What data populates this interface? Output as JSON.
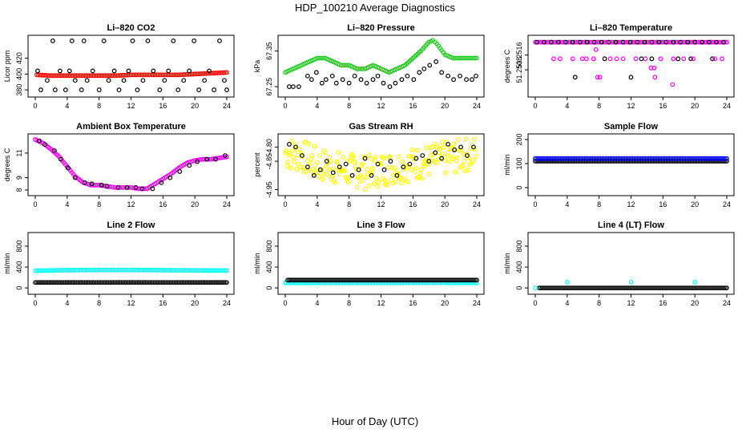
{
  "figure": {
    "title": "HDP_100210  Average Diagnostics",
    "xlabel": "Hour of Day (UTC)"
  },
  "colors": {
    "black": "#000000",
    "red": "#ff0000",
    "green": "#22cc22",
    "magenta": "#ff00ff",
    "yellow": "#ffff00",
    "blue": "#0000ff",
    "cyan": "#00ffff"
  },
  "chart_data": [
    {
      "type": "scatter",
      "title": "Li–820 CO2",
      "ylabel": "Licor ppm",
      "xlim": [
        0,
        24
      ],
      "ylim": [
        375,
        445
      ],
      "xticks": [
        "0",
        "4",
        "8",
        "12",
        "16",
        "20",
        "24"
      ],
      "yticks": [
        {
          "v": 380,
          "label": "380"
        },
        {
          "v": 400,
          "label": "400"
        },
        {
          "v": 420,
          "label": "420"
        }
      ],
      "series": [
        {
          "name": "open",
          "color": "red",
          "kind": "line",
          "x": [
            0.2,
            2,
            4,
            6,
            8,
            10,
            12,
            14,
            16,
            18,
            20,
            22,
            24
          ],
          "y": [
            399,
            398,
            398,
            398,
            398,
            398,
            399,
            399,
            399,
            399,
            400,
            401,
            402
          ]
        },
        {
          "name": "closed",
          "color": "black",
          "kind": "scatter",
          "x": [
            0.3,
            0.7,
            1.5,
            2.2,
            2.5,
            3.1,
            3.8,
            4.3,
            4.6,
            5.0,
            5.8,
            6.1,
            6.5,
            7.2,
            8.0,
            8.6,
            9.2,
            9.9,
            10.5,
            11.1,
            11.7,
            12.2,
            12.8,
            13.5,
            14.1,
            14.8,
            15.6,
            16.2,
            16.7,
            17.3,
            17.9,
            18.6,
            19.3,
            19.9,
            20.5,
            21.2,
            21.8,
            22.4,
            23.1,
            23.7,
            24.0
          ],
          "y": [
            404,
            380,
            392,
            442,
            380,
            404,
            380,
            404,
            442,
            392,
            380,
            442,
            392,
            404,
            380,
            442,
            392,
            404,
            380,
            392,
            404,
            442,
            380,
            392,
            442,
            404,
            380,
            392,
            404,
            442,
            380,
            392,
            404,
            442,
            380,
            392,
            404,
            380,
            442,
            392,
            380
          ]
        }
      ]
    },
    {
      "type": "scatter",
      "title": "Li–820 Pressure",
      "ylabel": "kPa",
      "xlim": [
        0,
        24
      ],
      "ylim": [
        67.23,
        67.385
      ],
      "xticks": [
        "0",
        "4",
        "8",
        "12",
        "16",
        "20",
        "24"
      ],
      "yticks": [
        {
          "v": 67.25,
          "label": "67.25"
        },
        {
          "v": 67.35,
          "label": "67.35"
        }
      ],
      "series": [
        {
          "name": "open",
          "color": "green",
          "kind": "line",
          "x": [
            0,
            1,
            2,
            3,
            4,
            5,
            6,
            7,
            8,
            9,
            10,
            11,
            12,
            13,
            14,
            15,
            16,
            17,
            18,
            18.5,
            19,
            20,
            21,
            22,
            23,
            24
          ],
          "y": [
            67.29,
            67.3,
            67.31,
            67.32,
            67.33,
            67.33,
            67.32,
            67.31,
            67.31,
            67.3,
            67.3,
            67.31,
            67.3,
            67.29,
            67.3,
            67.31,
            67.33,
            67.35,
            67.375,
            67.38,
            67.37,
            67.34,
            67.33,
            67.33,
            67.33,
            67.33
          ]
        },
        {
          "name": "closed",
          "color": "black",
          "kind": "scatter",
          "x": [
            0.5,
            1,
            1.7,
            2.8,
            3.3,
            3.9,
            4.6,
            5.1,
            5.9,
            6.4,
            7.2,
            8.0,
            8.7,
            9.5,
            10.2,
            11.0,
            11.6,
            12.3,
            13.1,
            13.8,
            14.6,
            15.3,
            16.1,
            16.8,
            17.4,
            18.1,
            18.9,
            19.6,
            20.4,
            21.1,
            21.9,
            22.7,
            23.4,
            23.9
          ],
          "y": [
            67.25,
            67.25,
            67.25,
            67.28,
            67.27,
            67.29,
            67.26,
            67.27,
            67.28,
            67.26,
            67.27,
            67.26,
            67.28,
            67.27,
            67.26,
            67.27,
            67.28,
            67.26,
            67.25,
            67.26,
            67.27,
            67.28,
            67.27,
            67.29,
            67.3,
            67.31,
            67.32,
            67.29,
            67.28,
            67.27,
            67.28,
            67.27,
            67.27,
            67.28
          ]
        }
      ]
    },
    {
      "type": "scatter",
      "title": "Li–820 Temperature",
      "ylabel": "degrees C",
      "xlim": [
        0,
        24
      ],
      "ylim": [
        51.2495,
        51.2525
      ],
      "xticks": [
        "0",
        "4",
        "8",
        "12",
        "16",
        "20",
        "24"
      ],
      "yticks": [
        {
          "v": 51.2508,
          "label": "51.2508"
        },
        {
          "v": 51.2516,
          "label": "51.2516"
        }
      ],
      "series": [
        {
          "name": "top-line",
          "color": "magenta",
          "kind": "line",
          "x": [
            0,
            24
          ],
          "y": [
            51.2523,
            51.2523
          ]
        },
        {
          "name": "closed",
          "color": "black",
          "kind": "scatter",
          "x": [
            0.2,
            1.1,
            2.0,
            2.9,
            3.8,
            4.7,
            5.6,
            6.5,
            7.4,
            8.3,
            9.2,
            10.1,
            11.0,
            11.9,
            12.8,
            13.7,
            14.6,
            15.5,
            16.4,
            17.3,
            18.2,
            19.1,
            20.0,
            20.9,
            21.8,
            22.7,
            23.6,
            5.0,
            8.7,
            12.0,
            13.3,
            14.6,
            17.9,
            19.5,
            22.2
          ],
          "y": [
            51.2523,
            51.2523,
            51.2523,
            51.2523,
            51.2523,
            51.2523,
            51.2523,
            51.2523,
            51.2523,
            51.2523,
            51.2523,
            51.2523,
            51.2523,
            51.2523,
            51.2523,
            51.2523,
            51.2523,
            51.2523,
            51.2523,
            51.2523,
            51.2523,
            51.2523,
            51.2523,
            51.2523,
            51.2523,
            51.2523,
            51.2523,
            51.2504,
            51.2514,
            51.2504,
            51.2514,
            51.2514,
            51.2514,
            51.2514,
            51.2514
          ]
        },
        {
          "name": "open",
          "color": "magenta",
          "kind": "scatter",
          "x": [
            2.3,
            3.1,
            4.7,
            5.9,
            6.4,
            7.3,
            7.6,
            8.1,
            9.4,
            10.2,
            11.0,
            12.6,
            13.8,
            14.5,
            15.0,
            15.7,
            17.3,
            18.6,
            19.8,
            22.5,
            23.4,
            7.8,
            14.9,
            17.2
          ],
          "y": [
            51.2514,
            51.2514,
            51.2514,
            51.2514,
            51.2514,
            51.2514,
            51.2519,
            51.2504,
            51.2514,
            51.2514,
            51.2514,
            51.2514,
            51.2514,
            51.2509,
            51.2504,
            51.2514,
            51.2514,
            51.2514,
            51.2514,
            51.2514,
            51.2514,
            51.2504,
            51.2509,
            51.25
          ]
        }
      ]
    },
    {
      "type": "scatter",
      "title": "Ambient Box Temperature",
      "ylabel": "degrees C",
      "xlim": [
        0,
        24
      ],
      "ylim": [
        7.8,
        12.3
      ],
      "xticks": [
        "0",
        "4",
        "8",
        "12",
        "16",
        "20",
        "24"
      ],
      "yticks": [
        {
          "v": 8,
          "label": "8"
        },
        {
          "v": 9,
          "label": "9"
        },
        {
          "v": 11,
          "label": "11"
        }
      ],
      "series": [
        {
          "name": "open",
          "color": "magenta",
          "kind": "line",
          "x": [
            0,
            1,
            2,
            3,
            4,
            5,
            6,
            7,
            8,
            9,
            10,
            11,
            12,
            13,
            14,
            15,
            16,
            17,
            18,
            19,
            20,
            21,
            22,
            23,
            24
          ],
          "y": [
            12.1,
            11.8,
            11.3,
            10.7,
            9.9,
            9.1,
            8.6,
            8.4,
            8.4,
            8.3,
            8.2,
            8.2,
            8.2,
            8.1,
            8.1,
            8.5,
            8.9,
            9.3,
            9.8,
            10.2,
            10.4,
            10.5,
            10.5,
            10.6,
            10.7
          ]
        },
        {
          "name": "closed",
          "color": "black",
          "kind": "scatter",
          "x": [
            0.5,
            1.2,
            2.4,
            3.2,
            4.1,
            5.0,
            6.2,
            7.1,
            8.3,
            9.0,
            10.4,
            11.5,
            12.6,
            13.4,
            14.7,
            15.8,
            16.9,
            18.1,
            19.3,
            20.3,
            21.5,
            22.6,
            23.8
          ],
          "y": [
            12.0,
            11.7,
            11.2,
            10.5,
            9.8,
            9.0,
            8.6,
            8.5,
            8.4,
            8.3,
            8.2,
            8.2,
            8.2,
            8.1,
            8.1,
            8.6,
            9.0,
            9.5,
            10.0,
            10.3,
            10.5,
            10.5,
            10.8
          ]
        }
      ]
    },
    {
      "type": "scatter",
      "title": "Gas Stream RH",
      "ylabel": "percent",
      "xlim": [
        0,
        24
      ],
      "ylim": [
        -4.96,
        -4.765
      ],
      "xticks": [
        "0",
        "4",
        "8",
        "12",
        "16",
        "20",
        "24"
      ],
      "yticks": [
        {
          "v": -4.95,
          "label": "-4.95"
        },
        {
          "v": -4.85,
          "label": "-4.85"
        },
        {
          "v": -4.8,
          "label": "-4.80"
        }
      ],
      "series": [
        {
          "name": "open",
          "color": "yellow",
          "kind": "band",
          "x": [
            0,
            2,
            4,
            6,
            8,
            10,
            12,
            14,
            16,
            18,
            20,
            22,
            24
          ],
          "y": [
            -4.82,
            -4.83,
            -4.86,
            -4.87,
            -4.88,
            -4.89,
            -4.88,
            -4.87,
            -4.86,
            -4.85,
            -4.84,
            -4.83,
            -4.82
          ],
          "spread": 0.06
        },
        {
          "name": "closed",
          "color": "black",
          "kind": "scatter",
          "x": [
            0.5,
            1.3,
            2.1,
            2.8,
            3.6,
            4.4,
            5.2,
            6.0,
            6.8,
            7.6,
            8.4,
            9.2,
            10.0,
            10.8,
            11.6,
            12.4,
            13.2,
            14.0,
            14.8,
            15.6,
            16.4,
            17.2,
            18.0,
            18.8,
            19.6,
            20.4,
            21.2,
            22.0,
            22.8,
            23.6
          ],
          "y": [
            -4.79,
            -4.8,
            -4.83,
            -4.87,
            -4.9,
            -4.88,
            -4.85,
            -4.89,
            -4.87,
            -4.86,
            -4.9,
            -4.88,
            -4.84,
            -4.9,
            -4.86,
            -4.88,
            -4.85,
            -4.9,
            -4.87,
            -4.86,
            -4.84,
            -4.83,
            -4.85,
            -4.82,
            -4.84,
            -4.79,
            -4.81,
            -4.8,
            -4.83,
            -4.8
          ]
        }
      ]
    },
    {
      "type": "scatter",
      "title": "Sample Flow",
      "ylabel": "ml/min",
      "xlim": [
        0,
        24
      ],
      "ylim": [
        -20,
        210
      ],
      "xticks": [
        "0",
        "4",
        "8",
        "12",
        "16",
        "20",
        "24"
      ],
      "yticks": [
        {
          "v": 0,
          "label": "0"
        },
        {
          "v": 100,
          "label": "100"
        },
        {
          "v": 200,
          "label": "200"
        }
      ],
      "series": [
        {
          "name": "closed",
          "color": "black",
          "kind": "line",
          "x": [
            0,
            24
          ],
          "y": [
            110,
            110
          ]
        },
        {
          "name": "open",
          "color": "blue",
          "kind": "line",
          "x": [
            0,
            24
          ],
          "y": [
            121,
            121
          ]
        }
      ]
    },
    {
      "type": "scatter",
      "title": "Line 2 Flow",
      "ylabel": "ml/min",
      "xlim": [
        0,
        24
      ],
      "ylim": [
        -60,
        1000
      ],
      "xticks": [
        "0",
        "4",
        "8",
        "12",
        "16",
        "20",
        "24"
      ],
      "yticks": [
        {
          "v": 0,
          "label": "0"
        },
        {
          "v": 400,
          "label": "400"
        },
        {
          "v": 800,
          "label": "800"
        }
      ],
      "series": [
        {
          "name": "open",
          "color": "cyan",
          "kind": "line",
          "x": [
            0,
            4,
            8,
            12,
            16,
            20,
            24
          ],
          "y": [
            330,
            340,
            345,
            345,
            340,
            335,
            335
          ]
        },
        {
          "name": "closed",
          "color": "black",
          "kind": "line",
          "x": [
            0,
            24
          ],
          "y": [
            105,
            105
          ]
        }
      ]
    },
    {
      "type": "scatter",
      "title": "Line 3 Flow",
      "ylabel": "ml/min",
      "xlim": [
        0,
        24
      ],
      "ylim": [
        -60,
        1000
      ],
      "xticks": [
        "0",
        "4",
        "8",
        "12",
        "16",
        "20",
        "24"
      ],
      "yticks": [
        {
          "v": 0,
          "label": "0"
        },
        {
          "v": 400,
          "label": "400"
        },
        {
          "v": 800,
          "label": "800"
        }
      ],
      "series": [
        {
          "name": "open",
          "color": "cyan",
          "kind": "line",
          "x": [
            0,
            24
          ],
          "y": [
            100,
            100
          ]
        },
        {
          "name": "closed",
          "color": "black",
          "kind": "line",
          "x": [
            0.3,
            24
          ],
          "y": [
            150,
            150
          ]
        }
      ]
    },
    {
      "type": "scatter",
      "title": "Line 4 (LT) Flow",
      "ylabel": "ml/min",
      "xlim": [
        0,
        24
      ],
      "ylim": [
        -60,
        1000
      ],
      "xticks": [
        "0",
        "4",
        "8",
        "12",
        "16",
        "20",
        "24"
      ],
      "yticks": [
        {
          "v": 0,
          "label": "0"
        },
        {
          "v": 400,
          "label": "400"
        },
        {
          "v": 800,
          "label": "800"
        }
      ],
      "series": [
        {
          "name": "closed",
          "color": "black",
          "kind": "line",
          "x": [
            0.5,
            24
          ],
          "y": [
            0,
            0
          ]
        },
        {
          "name": "open",
          "color": "cyan",
          "kind": "scatter",
          "x": [
            0,
            4,
            12,
            20
          ],
          "y": [
            0,
            110,
            110,
            110
          ]
        }
      ]
    }
  ]
}
